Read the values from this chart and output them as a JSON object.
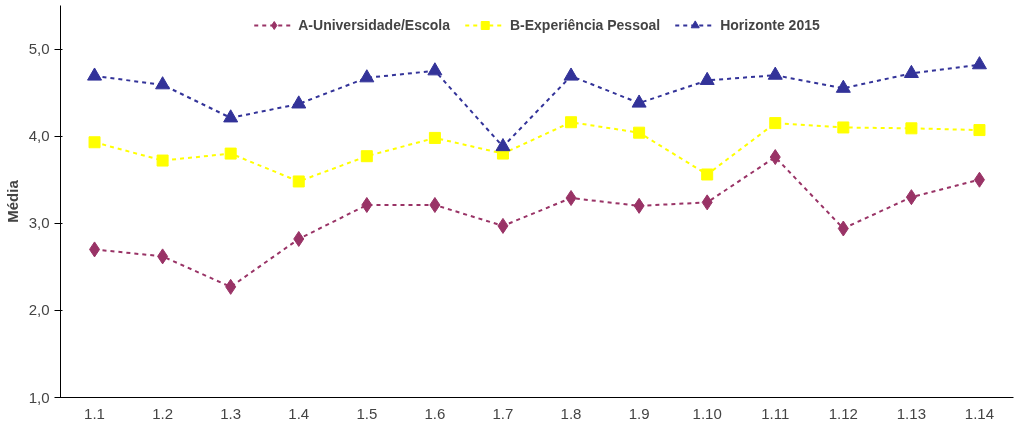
{
  "chart_data": {
    "type": "line",
    "ylabel": "Média",
    "categories": [
      "1.1",
      "1.2",
      "1.3",
      "1.4",
      "1.5",
      "1.6",
      "1.7",
      "1.8",
      "1.9",
      "1.10",
      "1.11",
      "1.12",
      "1.13",
      "1.14"
    ],
    "series": [
      {
        "name": "A-Universidade/Escola",
        "color": "#993366",
        "marker": "diamond",
        "values": [
          2.7,
          2.62,
          2.27,
          2.82,
          3.21,
          3.21,
          2.97,
          3.29,
          3.2,
          3.24,
          3.76,
          2.94,
          3.3,
          3.5
        ]
      },
      {
        "name": "B-Experiência Pessoal",
        "color": "#ffff00",
        "marker": "square",
        "values": [
          3.93,
          3.72,
          3.8,
          3.48,
          3.77,
          3.98,
          3.8,
          4.16,
          4.04,
          3.56,
          4.15,
          4.1,
          4.09,
          4.07
        ]
      },
      {
        "name": "Horizonte 2015",
        "color": "#333399",
        "marker": "triangle",
        "values": [
          4.69,
          4.59,
          4.21,
          4.37,
          4.67,
          4.75,
          3.88,
          4.69,
          4.38,
          4.64,
          4.7,
          4.55,
          4.72,
          4.82
        ]
      }
    ],
    "ylim": [
      1,
      5.5
    ],
    "yticks": [
      {
        "value": 1,
        "label": "1,0"
      },
      {
        "value": 2,
        "label": "2,0"
      },
      {
        "value": 3,
        "label": "3,0"
      },
      {
        "value": 4,
        "label": "4,0"
      },
      {
        "value": 5,
        "label": "5,0"
      }
    ],
    "grid": false,
    "legend": "top",
    "line_style": "dashed"
  }
}
